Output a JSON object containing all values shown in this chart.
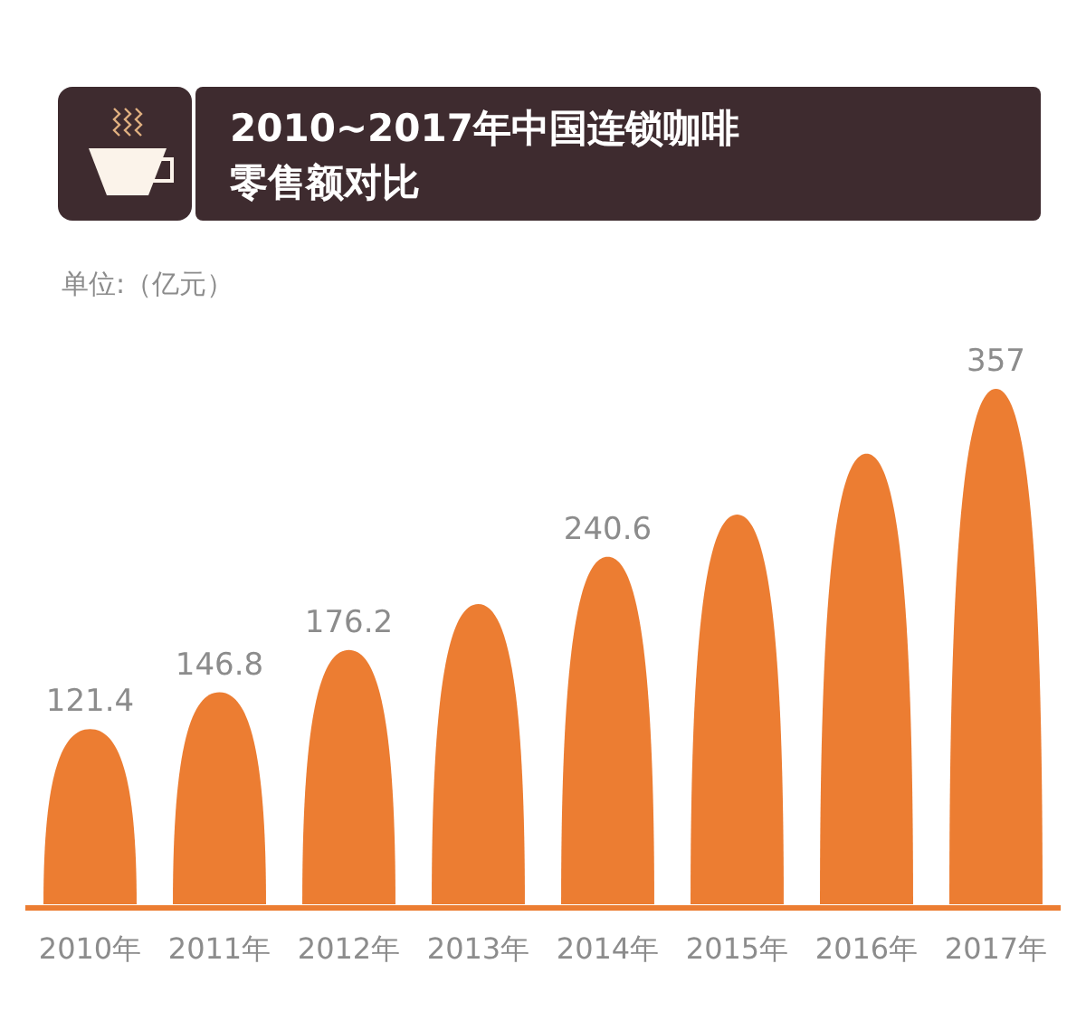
{
  "chart_data": {
    "type": "bar",
    "title": "2010~2017年中国连锁咖啡零售额对比",
    "annotations": [
      "单位:（亿元）"
    ],
    "categories": [
      "2010年",
      "2011年",
      "2012年",
      "2013年",
      "2014年",
      "2015年",
      "2016年",
      "2017年"
    ],
    "series": [
      {
        "color": "#ec7d32",
        "values": [
          121.4,
          146.8,
          176.2,
          208,
          240.6,
          270,
          312,
          357
        ],
        "value_labels": [
          "121.4",
          "146.8",
          "176.2",
          null,
          "240.6",
          null,
          null,
          "357"
        ]
      }
    ]
  }
}
